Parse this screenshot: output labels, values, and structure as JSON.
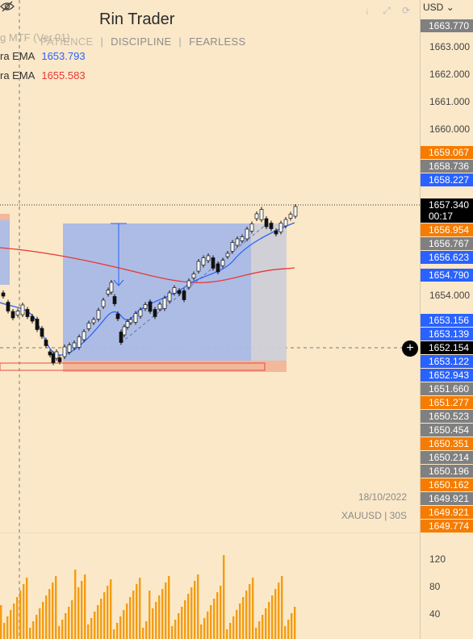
{
  "header": {
    "brand": "Rin Trader",
    "tagline": [
      "PATIENCE",
      "DISCIPLINE",
      "FEARLESS"
    ]
  },
  "indicators": {
    "mtf_label": "g MTF (Ver.01)",
    "ema_fast": {
      "label": "ra EMA",
      "value": "1653.793",
      "color": "#2962ff"
    },
    "ema_slow": {
      "label": "ra EMA",
      "value": "1655.583",
      "color": "#e53935"
    }
  },
  "toolbar": {
    "icons": [
      "arrow-down-icon",
      "expand-icon",
      "refresh-icon"
    ],
    "glyphs": [
      "↓",
      "⤢",
      "⟳"
    ]
  },
  "currency": "USD",
  "price_axis": {
    "ticks": [
      "1663.770",
      "1663.000",
      "1662.000",
      "1661.000",
      "1660.000",
      "1654.000"
    ],
    "tags": [
      {
        "label": "1663.770",
        "kind": "grey"
      },
      {
        "label": "1659.067",
        "kind": "orange"
      },
      {
        "label": "1658.736",
        "kind": "grey"
      },
      {
        "label": "1658.227",
        "kind": "blue"
      },
      {
        "label": "1657.340",
        "kind": "black",
        "sub": "00:17"
      },
      {
        "label": "1656.954",
        "kind": "orange"
      },
      {
        "label": "1656.767",
        "kind": "grey"
      },
      {
        "label": "1656.623",
        "kind": "blue"
      },
      {
        "label": "1654.790",
        "kind": "blue"
      },
      {
        "label": "1653.156",
        "kind": "blue"
      },
      {
        "label": "1653.139",
        "kind": "blue"
      },
      {
        "label": "1652.154",
        "kind": "black"
      },
      {
        "label": "1653.122",
        "kind": "blue"
      },
      {
        "label": "1652.943",
        "kind": "blue"
      },
      {
        "label": "1651.660",
        "kind": "grey"
      },
      {
        "label": "1651.277",
        "kind": "orange"
      },
      {
        "label": "1650.523",
        "kind": "grey"
      },
      {
        "label": "1650.454",
        "kind": "grey"
      },
      {
        "label": "1650.351",
        "kind": "orange"
      },
      {
        "label": "1650.214",
        "kind": "grey"
      },
      {
        "label": "1650.196",
        "kind": "grey"
      },
      {
        "label": "1650.162",
        "kind": "orange"
      },
      {
        "label": "1649.921",
        "kind": "grey"
      },
      {
        "label": "1649.921",
        "kind": "orange"
      },
      {
        "label": "1649.774",
        "kind": "orange"
      }
    ]
  },
  "volume_axis": {
    "ticks": [
      "120",
      "80",
      "40"
    ]
  },
  "footer": {
    "date": "18/10/2022",
    "symbol": "XAUUSD | 30S"
  },
  "colors": {
    "background": "#fbe8c8",
    "bull": "#2962ff",
    "ema_slow": "#e53935",
    "box_fill": "#a9b9e6",
    "box_grey": "#cfcfd8",
    "zone": "#f3b79a"
  }
}
